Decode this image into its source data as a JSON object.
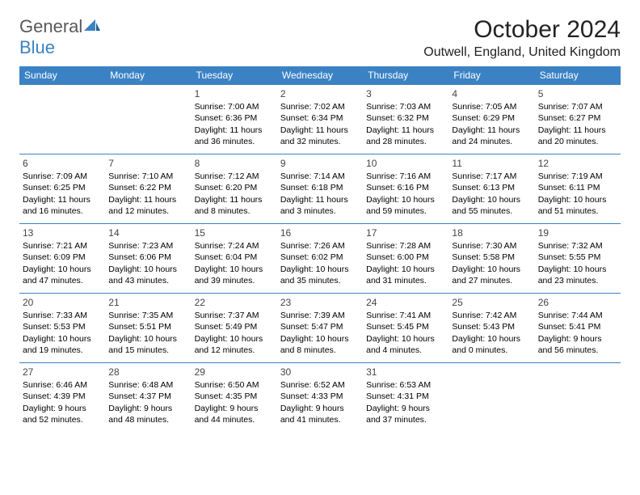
{
  "logo": {
    "word1": "General",
    "word2": "Blue"
  },
  "title": "October 2024",
  "location": "Outwell, England, United Kingdom",
  "styling": {
    "header_bg": "#3b82c4",
    "header_fg": "#ffffff",
    "border_color": "#3b82c4",
    "body_bg": "#ffffff",
    "text_color": "#000000",
    "logo_gray": "#58595b",
    "logo_blue": "#3b82c4",
    "title_fontsize": 30,
    "location_fontsize": 16,
    "dayhdr_fontsize": 12,
    "cell_fontsize": 10.5,
    "cols": 7,
    "rows": 5
  },
  "day_headers": [
    "Sunday",
    "Monday",
    "Tuesday",
    "Wednesday",
    "Thursday",
    "Friday",
    "Saturday"
  ],
  "weeks": [
    [
      null,
      null,
      {
        "n": "1",
        "sr": "Sunrise: 7:00 AM",
        "ss": "Sunset: 6:36 PM",
        "dl": "Daylight: 11 hours and 36 minutes."
      },
      {
        "n": "2",
        "sr": "Sunrise: 7:02 AM",
        "ss": "Sunset: 6:34 PM",
        "dl": "Daylight: 11 hours and 32 minutes."
      },
      {
        "n": "3",
        "sr": "Sunrise: 7:03 AM",
        "ss": "Sunset: 6:32 PM",
        "dl": "Daylight: 11 hours and 28 minutes."
      },
      {
        "n": "4",
        "sr": "Sunrise: 7:05 AM",
        "ss": "Sunset: 6:29 PM",
        "dl": "Daylight: 11 hours and 24 minutes."
      },
      {
        "n": "5",
        "sr": "Sunrise: 7:07 AM",
        "ss": "Sunset: 6:27 PM",
        "dl": "Daylight: 11 hours and 20 minutes."
      }
    ],
    [
      {
        "n": "6",
        "sr": "Sunrise: 7:09 AM",
        "ss": "Sunset: 6:25 PM",
        "dl": "Daylight: 11 hours and 16 minutes."
      },
      {
        "n": "7",
        "sr": "Sunrise: 7:10 AM",
        "ss": "Sunset: 6:22 PM",
        "dl": "Daylight: 11 hours and 12 minutes."
      },
      {
        "n": "8",
        "sr": "Sunrise: 7:12 AM",
        "ss": "Sunset: 6:20 PM",
        "dl": "Daylight: 11 hours and 8 minutes."
      },
      {
        "n": "9",
        "sr": "Sunrise: 7:14 AM",
        "ss": "Sunset: 6:18 PM",
        "dl": "Daylight: 11 hours and 3 minutes."
      },
      {
        "n": "10",
        "sr": "Sunrise: 7:16 AM",
        "ss": "Sunset: 6:16 PM",
        "dl": "Daylight: 10 hours and 59 minutes."
      },
      {
        "n": "11",
        "sr": "Sunrise: 7:17 AM",
        "ss": "Sunset: 6:13 PM",
        "dl": "Daylight: 10 hours and 55 minutes."
      },
      {
        "n": "12",
        "sr": "Sunrise: 7:19 AM",
        "ss": "Sunset: 6:11 PM",
        "dl": "Daylight: 10 hours and 51 minutes."
      }
    ],
    [
      {
        "n": "13",
        "sr": "Sunrise: 7:21 AM",
        "ss": "Sunset: 6:09 PM",
        "dl": "Daylight: 10 hours and 47 minutes."
      },
      {
        "n": "14",
        "sr": "Sunrise: 7:23 AM",
        "ss": "Sunset: 6:06 PM",
        "dl": "Daylight: 10 hours and 43 minutes."
      },
      {
        "n": "15",
        "sr": "Sunrise: 7:24 AM",
        "ss": "Sunset: 6:04 PM",
        "dl": "Daylight: 10 hours and 39 minutes."
      },
      {
        "n": "16",
        "sr": "Sunrise: 7:26 AM",
        "ss": "Sunset: 6:02 PM",
        "dl": "Daylight: 10 hours and 35 minutes."
      },
      {
        "n": "17",
        "sr": "Sunrise: 7:28 AM",
        "ss": "Sunset: 6:00 PM",
        "dl": "Daylight: 10 hours and 31 minutes."
      },
      {
        "n": "18",
        "sr": "Sunrise: 7:30 AM",
        "ss": "Sunset: 5:58 PM",
        "dl": "Daylight: 10 hours and 27 minutes."
      },
      {
        "n": "19",
        "sr": "Sunrise: 7:32 AM",
        "ss": "Sunset: 5:55 PM",
        "dl": "Daylight: 10 hours and 23 minutes."
      }
    ],
    [
      {
        "n": "20",
        "sr": "Sunrise: 7:33 AM",
        "ss": "Sunset: 5:53 PM",
        "dl": "Daylight: 10 hours and 19 minutes."
      },
      {
        "n": "21",
        "sr": "Sunrise: 7:35 AM",
        "ss": "Sunset: 5:51 PM",
        "dl": "Daylight: 10 hours and 15 minutes."
      },
      {
        "n": "22",
        "sr": "Sunrise: 7:37 AM",
        "ss": "Sunset: 5:49 PM",
        "dl": "Daylight: 10 hours and 12 minutes."
      },
      {
        "n": "23",
        "sr": "Sunrise: 7:39 AM",
        "ss": "Sunset: 5:47 PM",
        "dl": "Daylight: 10 hours and 8 minutes."
      },
      {
        "n": "24",
        "sr": "Sunrise: 7:41 AM",
        "ss": "Sunset: 5:45 PM",
        "dl": "Daylight: 10 hours and 4 minutes."
      },
      {
        "n": "25",
        "sr": "Sunrise: 7:42 AM",
        "ss": "Sunset: 5:43 PM",
        "dl": "Daylight: 10 hours and 0 minutes."
      },
      {
        "n": "26",
        "sr": "Sunrise: 7:44 AM",
        "ss": "Sunset: 5:41 PM",
        "dl": "Daylight: 9 hours and 56 minutes."
      }
    ],
    [
      {
        "n": "27",
        "sr": "Sunrise: 6:46 AM",
        "ss": "Sunset: 4:39 PM",
        "dl": "Daylight: 9 hours and 52 minutes."
      },
      {
        "n": "28",
        "sr": "Sunrise: 6:48 AM",
        "ss": "Sunset: 4:37 PM",
        "dl": "Daylight: 9 hours and 48 minutes."
      },
      {
        "n": "29",
        "sr": "Sunrise: 6:50 AM",
        "ss": "Sunset: 4:35 PM",
        "dl": "Daylight: 9 hours and 44 minutes."
      },
      {
        "n": "30",
        "sr": "Sunrise: 6:52 AM",
        "ss": "Sunset: 4:33 PM",
        "dl": "Daylight: 9 hours and 41 minutes."
      },
      {
        "n": "31",
        "sr": "Sunrise: 6:53 AM",
        "ss": "Sunset: 4:31 PM",
        "dl": "Daylight: 9 hours and 37 minutes."
      },
      null,
      null
    ]
  ]
}
